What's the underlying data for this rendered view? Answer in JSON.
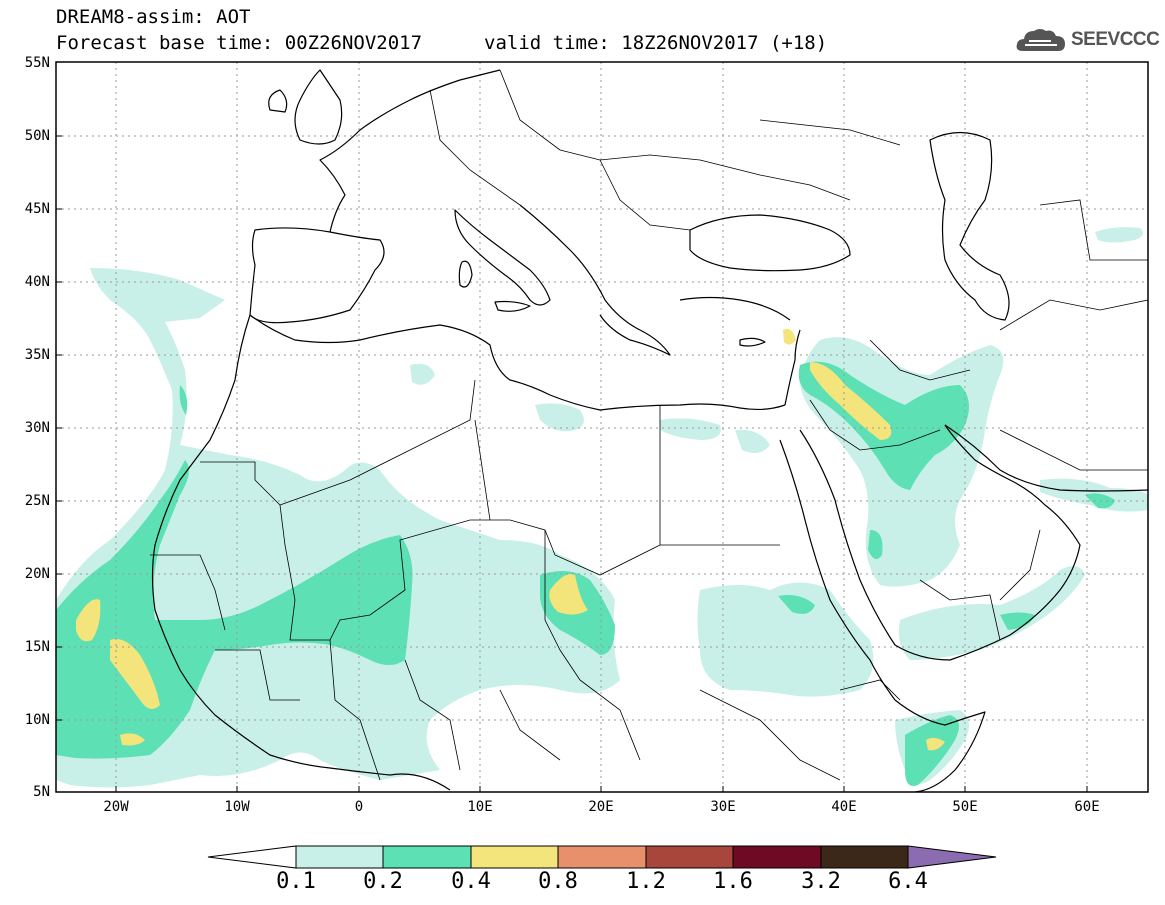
{
  "header": {
    "title_line1": "DREAM8-assim: AOT",
    "title_line2": "Forecast base time: 00Z26NOV2017",
    "valid_time": "valid time: 18Z26NOV2017 (+18)",
    "logo_text": "SEEVCCC",
    "logo_icon": "cloud-logo-icon"
  },
  "map": {
    "lat_labels": [
      "55N",
      "50N",
      "45N",
      "40N",
      "35N",
      "30N",
      "25N",
      "20N",
      "15N",
      "10N",
      "5N"
    ],
    "lon_labels": [
      "20W",
      "10W",
      "0",
      "10E",
      "20E",
      "30E",
      "40E",
      "50E",
      "60E"
    ]
  },
  "colorbar": {
    "labels": [
      "0.1",
      "0.2",
      "0.4",
      "0.8",
      "1.2",
      "1.6",
      "3.2",
      "6.4"
    ],
    "colors": [
      "#ffffff",
      "#c8f0e8",
      "#5ce0b4",
      "#f4e47c",
      "#e8906c",
      "#a8463c",
      "#6e0a24",
      "#3c2818",
      "#8c6cb0"
    ]
  },
  "colors": {
    "level1": "#c8f0e8",
    "level2": "#5ce0b4",
    "level3": "#f4e47c",
    "coast": "#000000",
    "grid": "#9a9a9a"
  }
}
